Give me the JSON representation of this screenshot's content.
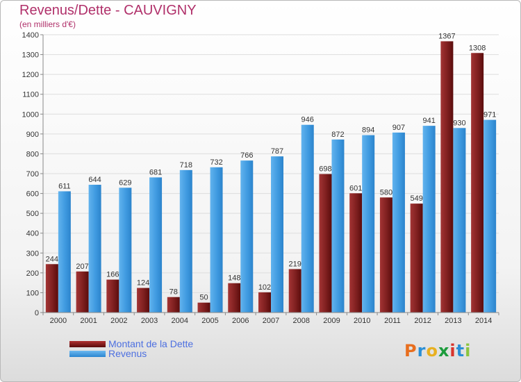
{
  "title": "Revenus/Dette - CAUVIGNY",
  "subtitle": "(en milliers d'€)",
  "colors": {
    "dette": "#7a1a1a",
    "revenus": "#3f9ae0",
    "title": "#b0306a",
    "legend_text": "#4c6fe0"
  },
  "legend": [
    {
      "label": "Montant de la Dette",
      "color": "#7a1a1a"
    },
    {
      "label": "Revenus",
      "color": "#3f9ae0"
    }
  ],
  "logo": {
    "letters": [
      "P",
      "r",
      "o",
      "x",
      "i",
      "t",
      "i"
    ],
    "colors": [
      "#e86e1e",
      "#2a8fd6",
      "#e8b020",
      "#1c9c3c",
      "#d8342c",
      "#2a8fd6",
      "#8bc53f"
    ]
  },
  "chart_data": {
    "type": "bar",
    "categories": [
      "2000",
      "2001",
      "2002",
      "2003",
      "2004",
      "2005",
      "2006",
      "2007",
      "2008",
      "2009",
      "2010",
      "2011",
      "2012",
      "2013",
      "2014"
    ],
    "series": [
      {
        "name": "Montant de la Dette",
        "values": [
          244,
          207,
          166,
          124,
          78,
          50,
          148,
          102,
          219,
          698,
          601,
          580,
          549,
          1367,
          1308
        ]
      },
      {
        "name": "Revenus",
        "values": [
          611,
          644,
          629,
          681,
          718,
          732,
          766,
          787,
          946,
          872,
          894,
          907,
          941,
          930,
          971
        ]
      }
    ],
    "yticks": [
      0,
      100,
      200,
      300,
      400,
      500,
      600,
      700,
      800,
      900,
      1000,
      1100,
      1200,
      1300,
      1400
    ],
    "ylim": [
      0,
      1400
    ],
    "grid": true
  }
}
